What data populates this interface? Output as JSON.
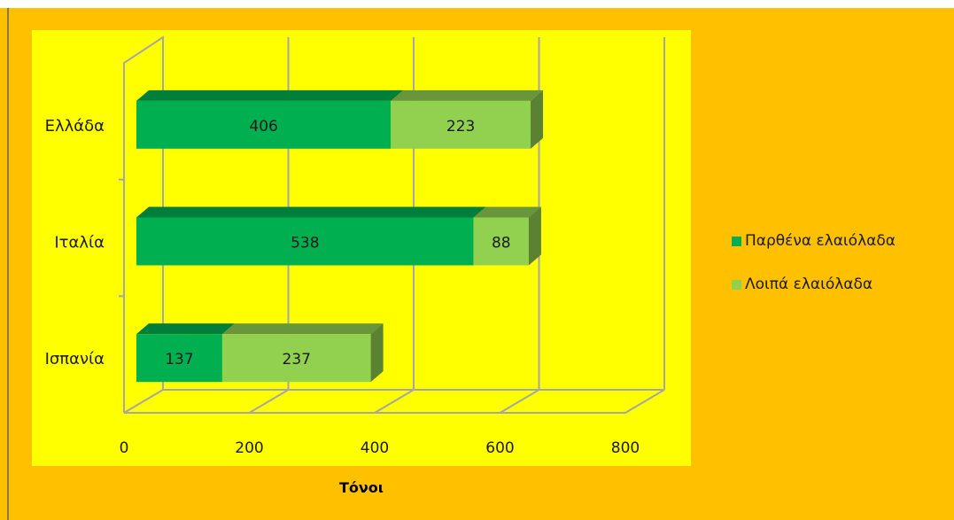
{
  "header_text": "",
  "chart_data": {
    "type": "bar",
    "orientation": "horizontal",
    "stacked": true,
    "three_d": true,
    "categories": [
      "Ελλάδα",
      "Ιταλία",
      "Ισπανία"
    ],
    "series": [
      {
        "name": "Παρθένα ελαιόλαδα",
        "values": [
          406,
          538,
          137
        ],
        "color": "#00b050"
      },
      {
        "name": "Λοιπά ελαιόλαδα",
        "values": [
          223,
          88,
          237
        ],
        "color": "#92d050"
      }
    ],
    "xlabel": "Τόνοι",
    "ylabel": "",
    "xlim": [
      0,
      800
    ],
    "xticks": [
      "0",
      "200",
      "400",
      "600",
      "800"
    ],
    "grid": true,
    "legend_position": "right",
    "colors": {
      "background": "#ffc000",
      "plot_area": "#ffff00"
    }
  }
}
